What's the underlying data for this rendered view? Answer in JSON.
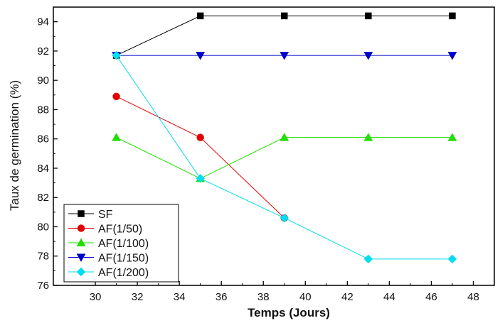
{
  "chart_data": {
    "type": "line",
    "xlabel": "Temps (Jours)",
    "ylabel": "Taux de germination (%)",
    "xlim": [
      28,
      49
    ],
    "ylim": [
      76,
      95
    ],
    "xticks": [
      30,
      32,
      34,
      36,
      38,
      40,
      42,
      44,
      46,
      48
    ],
    "yticks": [
      76,
      78,
      80,
      82,
      84,
      86,
      88,
      90,
      92,
      94
    ],
    "legend_position": "bottom-left",
    "grid": false,
    "series": [
      {
        "name": "SF",
        "color": "#000000",
        "marker": "square",
        "x": [
          31,
          35,
          39,
          43,
          47
        ],
        "y": [
          91.7,
          94.4,
          94.4,
          94.4,
          94.4
        ]
      },
      {
        "name": "AF(1/50)",
        "color": "#e00000",
        "marker": "circle",
        "x": [
          31,
          35,
          39
        ],
        "y": [
          88.9,
          86.1,
          80.6
        ]
      },
      {
        "name": "AF(1/100)",
        "color": "#22dd00",
        "marker": "triangle-up",
        "x": [
          31,
          35,
          39,
          43,
          47
        ],
        "y": [
          86.1,
          83.3,
          86.1,
          86.1,
          86.1
        ]
      },
      {
        "name": "AF(1/150)",
        "color": "#0000cc",
        "marker": "triangle-down",
        "x": [
          31,
          35,
          39,
          43,
          47
        ],
        "y": [
          91.7,
          91.7,
          91.7,
          91.7,
          91.7
        ]
      },
      {
        "name": "AF(1/200)",
        "color": "#00ddee",
        "marker": "diamond",
        "x": [
          31,
          35,
          39,
          43,
          47
        ],
        "y": [
          91.7,
          83.3,
          80.6,
          77.8,
          77.8
        ]
      }
    ]
  }
}
